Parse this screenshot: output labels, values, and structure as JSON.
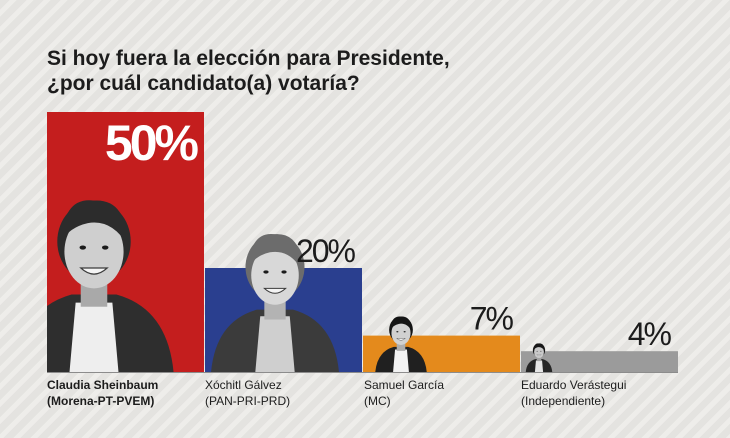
{
  "title_lines": [
    "Si hoy fuera la elección para Presidente,",
    "¿por cuál candidato(a) votaría?"
  ],
  "colors": {
    "background": "#e4e3e0",
    "baseline": "#8c8c8c",
    "text": "#1c1c1c",
    "value_on_bar": "#ffffff"
  },
  "chart_data": {
    "type": "bar",
    "title": "Si hoy fuera la elección para Presidente, ¿por cuál candidato(a) votaría?",
    "categories": [
      "Claudia Sheinbaum",
      "Xóchitl Gálvez",
      "Samuel García",
      "Eduardo Verástegui"
    ],
    "parties": [
      "(Morena-PT-PVEM)",
      "(PAN-PRI-PRD)",
      "(MC)",
      "(Independiente)"
    ],
    "values": [
      50,
      20,
      7,
      4
    ],
    "value_labels": [
      "50%",
      "20%",
      "7%",
      "4%"
    ],
    "bar_colors": [
      "#c41e1e",
      "#2a3f8f",
      "#e48a1c",
      "#9b9b9b"
    ],
    "unit": "%",
    "ylim": [
      0,
      50
    ],
    "grid": false,
    "legend": "none",
    "orientation": "vertical",
    "photos": [
      "portrait-of-claudia-sheinbaum",
      "portrait-of-xochitl-galvez",
      "portrait-of-samuel-garcia",
      "portrait-of-eduardo-verastegui"
    ]
  }
}
